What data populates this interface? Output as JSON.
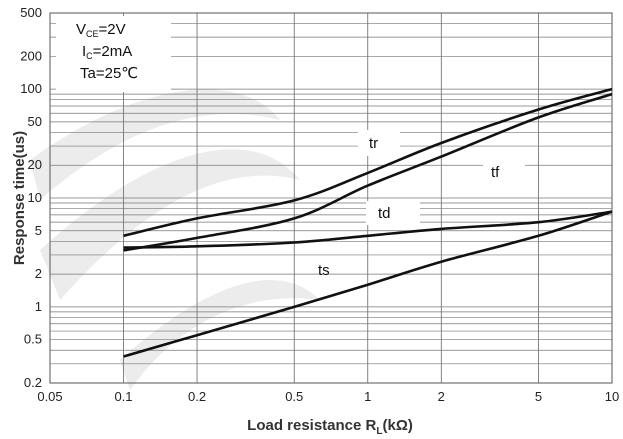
{
  "chart_data": {
    "type": "line",
    "xlabel": "Load resistance R",
    "xlabel_sub": "L",
    "xlabel_unit": "(kΩ)",
    "ylabel": "Response time(us)",
    "x_scale": "log",
    "y_scale": "log",
    "xlim": [
      0.05,
      10
    ],
    "ylim": [
      0.2,
      500
    ],
    "x_ticks": [
      {
        "v": 0.05,
        "label": "0.05"
      },
      {
        "v": 0.1,
        "label": "0.1"
      },
      {
        "v": 0.2,
        "label": "0.2"
      },
      {
        "v": 0.5,
        "label": "0.5"
      },
      {
        "v": 1,
        "label": "1"
      },
      {
        "v": 2,
        "label": "2"
      },
      {
        "v": 5,
        "label": "5"
      },
      {
        "v": 10,
        "label": "10"
      }
    ],
    "y_ticks": [
      {
        "v": 0.2,
        "label": "0.2"
      },
      {
        "v": 0.5,
        "label": "0.5"
      },
      {
        "v": 1,
        "label": "1"
      },
      {
        "v": 2,
        "label": "2"
      },
      {
        "v": 5,
        "label": "5"
      },
      {
        "v": 10,
        "label": "10"
      },
      {
        "v": 20,
        "label": "20"
      },
      {
        "v": 50,
        "label": "50"
      },
      {
        "v": 100,
        "label": "100"
      },
      {
        "v": 200,
        "label": "200"
      },
      {
        "v": 500,
        "label": "500"
      }
    ],
    "grid": true,
    "conditions": {
      "vce": {
        "main": "V",
        "sub": "CE",
        "rest": "=2V"
      },
      "ic": {
        "main": "I",
        "sub": "C",
        "rest": "=2mA"
      },
      "ta": {
        "main": "Ta=25℃"
      }
    },
    "series": [
      {
        "name": "tr",
        "x": [
          0.1,
          0.2,
          0.5,
          1,
          2,
          5,
          10
        ],
        "y": [
          4.5,
          6.5,
          9.5,
          17,
          32,
          65,
          100
        ]
      },
      {
        "name": "tf",
        "x": [
          0.1,
          0.2,
          0.5,
          1,
          2,
          5,
          10
        ],
        "y": [
          3.3,
          4.3,
          6.5,
          13,
          24,
          55,
          90
        ]
      },
      {
        "name": "td",
        "x": [
          0.1,
          0.2,
          0.5,
          1,
          2,
          5,
          10
        ],
        "y": [
          3.5,
          3.6,
          3.9,
          4.5,
          5.2,
          6.0,
          7.5
        ]
      },
      {
        "name": "ts",
        "x": [
          0.1,
          0.2,
          0.5,
          1,
          2,
          5,
          10
        ],
        "y": [
          0.35,
          0.55,
          1.0,
          1.6,
          2.6,
          4.5,
          7.5
        ]
      }
    ]
  }
}
